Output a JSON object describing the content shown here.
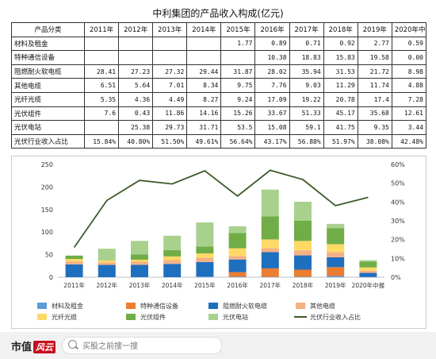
{
  "table": {
    "title": "中利集团的产品收入构成(亿元)",
    "header_label": "产品分类",
    "years": [
      "2011年",
      "2012年",
      "2013年",
      "2014年",
      "2015年",
      "2016年",
      "2017年",
      "2018年",
      "2019年",
      "2020年中报"
    ],
    "rows": [
      {
        "label": "材料及租金",
        "values": [
          "",
          "",
          "",
          "",
          "1.77",
          "0.89",
          "0.71",
          "0.92",
          "2.77",
          "0.59"
        ]
      },
      {
        "label": "特种通信设备",
        "values": [
          "",
          "",
          "",
          "",
          "",
          "10.38",
          "18.83",
          "15.83",
          "19.58",
          "0.00"
        ]
      },
      {
        "label": "阻燃耐火软电缆",
        "values": [
          "28.41",
          "27.23",
          "27.32",
          "29.44",
          "31.87",
          "28.02",
          "35.94",
          "31.53",
          "21.72",
          "8.98"
        ]
      },
      {
        "label": "其他电缆",
        "values": [
          "6.51",
          "5.64",
          "7.01",
          "8.34",
          "9.75",
          "7.76",
          "9.03",
          "11.29",
          "11.74",
          "4.88"
        ]
      },
      {
        "label": "光纤光缆",
        "values": [
          "5.35",
          "4.36",
          "4.49",
          "8.27",
          "9.24",
          "17.09",
          "19.22",
          "20.78",
          "17.4",
          "7.28"
        ]
      },
      {
        "label": "光伏组件",
        "values": [
          "7.6",
          "0.43",
          "11.86",
          "14.16",
          "15.26",
          "33.67",
          "51.33",
          "45.17",
          "35.68",
          "12.61"
        ]
      },
      {
        "label": "光伏电站",
        "values": [
          "",
          "25.38",
          "29.73",
          "31.71",
          "53.5",
          "15.08",
          "59.1",
          "41.75",
          "9.35",
          "3.44"
        ]
      },
      {
        "label": "光伏行业收入占比",
        "values": [
          "15.84%",
          "40.80%",
          "51.50%",
          "49.61%",
          "56.64%",
          "43.17%",
          "56.88%",
          "51.97%",
          "38.08%",
          "42.48%"
        ]
      }
    ]
  },
  "chart_data": {
    "type": "bar",
    "stacked": true,
    "categories": [
      "2011年",
      "2012年",
      "2013年",
      "2014年",
      "2015年",
      "2016年",
      "2017年",
      "2018年",
      "2019年",
      "2020年中报"
    ],
    "y_left": {
      "min": 0,
      "max": 250,
      "step": 50,
      "ticks": [
        "0",
        "50",
        "100",
        "150",
        "200",
        "250"
      ]
    },
    "y_right": {
      "min": 0,
      "max": 60,
      "step": 10,
      "ticks": [
        "0%",
        "10%",
        "20%",
        "30%",
        "40%",
        "50%",
        "60%"
      ]
    },
    "series": [
      {
        "name": "材料及租金",
        "type": "bar",
        "color": "#5b9bd5",
        "values": [
          0,
          0,
          0,
          0,
          1.77,
          0.89,
          0.71,
          0.92,
          2.77,
          0.59
        ]
      },
      {
        "name": "特种通信设备",
        "type": "bar",
        "color": "#ed7d31",
        "values": [
          0,
          0,
          0,
          0,
          0,
          10.38,
          18.83,
          15.83,
          19.58,
          0.0
        ]
      },
      {
        "name": "阻燃耐火软电缆",
        "type": "bar",
        "color": "#1f6fbf",
        "values": [
          28.41,
          27.23,
          27.32,
          29.44,
          31.87,
          28.02,
          35.94,
          31.53,
          21.72,
          8.98
        ]
      },
      {
        "name": "其他电缆",
        "type": "bar",
        "color": "#f4b183",
        "values": [
          6.51,
          5.64,
          7.01,
          8.34,
          9.75,
          7.76,
          9.03,
          11.29,
          11.74,
          4.88
        ]
      },
      {
        "name": "光纤光缆",
        "type": "bar",
        "color": "#ffd966",
        "values": [
          5.35,
          4.36,
          4.49,
          8.27,
          9.24,
          17.09,
          19.22,
          20.78,
          17.4,
          7.28
        ]
      },
      {
        "name": "光伏组件",
        "type": "bar",
        "color": "#70ad47",
        "values": [
          7.6,
          0.43,
          11.86,
          14.16,
          15.26,
          33.67,
          51.33,
          45.17,
          35.68,
          12.61
        ]
      },
      {
        "name": "光伏电站",
        "type": "bar",
        "color": "#a9d18e",
        "values": [
          0,
          25.38,
          29.73,
          31.71,
          53.5,
          15.08,
          59.1,
          41.75,
          9.35,
          3.44
        ]
      },
      {
        "name": "光伏行业收入占比",
        "type": "line",
        "axis": "right",
        "color": "#3d5a2a",
        "values": [
          15.84,
          40.8,
          51.5,
          49.61,
          56.64,
          43.17,
          56.88,
          51.97,
          38.08,
          42.48
        ]
      }
    ],
    "legend_position": "bottom",
    "grid": false
  },
  "footer": {
    "logo_text": "市值",
    "logo_mark": "风云",
    "search_placeholder": "买股之前搜一搜",
    "search_icon": "search-icon"
  }
}
